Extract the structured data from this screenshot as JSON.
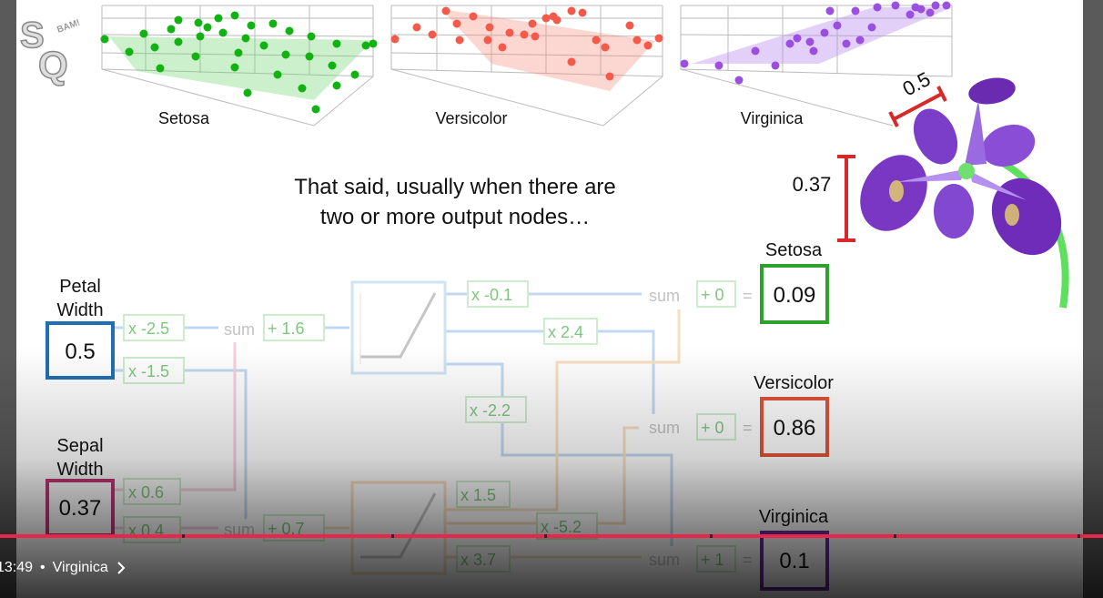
{
  "slide": {
    "logo_text": "StatQuest",
    "logo_small": "BAM!",
    "plot_labels": [
      "Setosa",
      "Versicolor",
      "Virginica"
    ],
    "caption_line1": "That said, usually when there are",
    "caption_line2": "two or more output nodes…",
    "measure_horizontal": "0.5",
    "measure_vertical": "0.37",
    "inputs": [
      {
        "label1": "Petal",
        "label2": "Width",
        "value": "0.5"
      },
      {
        "label1": "Sepal",
        "label2": "Width",
        "value": "0.37"
      }
    ],
    "weights": {
      "w1": "x -2.5",
      "w2": "x -1.5",
      "w3": "x 0.6",
      "w4": "x 0.4",
      "top_sum": "sum",
      "top_bias": "+ 1.6",
      "bot_sum": "sum",
      "bot_bias": "+ 0.7",
      "o1": "x -0.1",
      "o2": "x 2.4",
      "o3": "x -2.2",
      "o4": "x 1.5",
      "o5": "x -5.2",
      "o6": "x 3.7"
    },
    "outputs": [
      {
        "label": "Setosa",
        "sum": "sum",
        "bias": "+ 0",
        "eq": "=",
        "value": "0.09",
        "color": "#2ea12e"
      },
      {
        "label": "Versicolor",
        "sum": "sum",
        "bias": "+ 0",
        "eq": "=",
        "value": "0.86",
        "color": "#e0553a"
      },
      {
        "label": "Virginica",
        "sum": "sum",
        "bias": "+ 1",
        "eq": "=",
        "value": "0.1",
        "color": "#6a2fa0"
      }
    ]
  },
  "player": {
    "timestamp": "13:49",
    "separator": "•",
    "chapter": "Virginica",
    "progress_fraction": 1.0
  },
  "colors": {
    "setosa": "#2ea12e",
    "versicolor": "#f05c48",
    "virginica": "#9b4fe0",
    "blue": "#1f6fb4",
    "pink": "#c2367a",
    "accent": "#e8264a"
  }
}
